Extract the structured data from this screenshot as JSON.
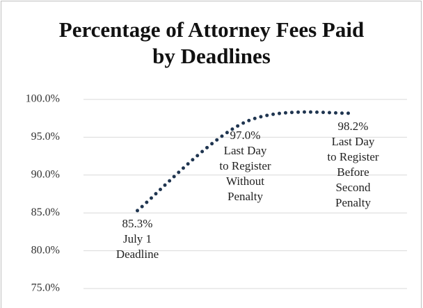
{
  "chart_data": {
    "type": "line",
    "title": "Percentage of  Attorney Fees Paid by Deadlines",
    "categories": [
      "July 1 Deadline",
      "Last Day to Register Without Penalty",
      "Last Day to Register Before Second Penalty"
    ],
    "values": [
      85.3,
      97.0,
      98.2
    ],
    "value_labels": [
      "85.3%",
      "97.0%",
      "98.2%"
    ],
    "color": "#1f3550",
    "ylim": [
      75,
      100
    ],
    "yticks": [
      {
        "value": 75,
        "label": "75.0%"
      },
      {
        "value": 80,
        "label": "80.0%"
      },
      {
        "value": 85,
        "label": "85.0%"
      },
      {
        "value": 90,
        "label": "90.0%"
      },
      {
        "value": 95,
        "label": "95.0%"
      },
      {
        "value": 100,
        "label": "100.0%"
      }
    ],
    "grid": true
  }
}
